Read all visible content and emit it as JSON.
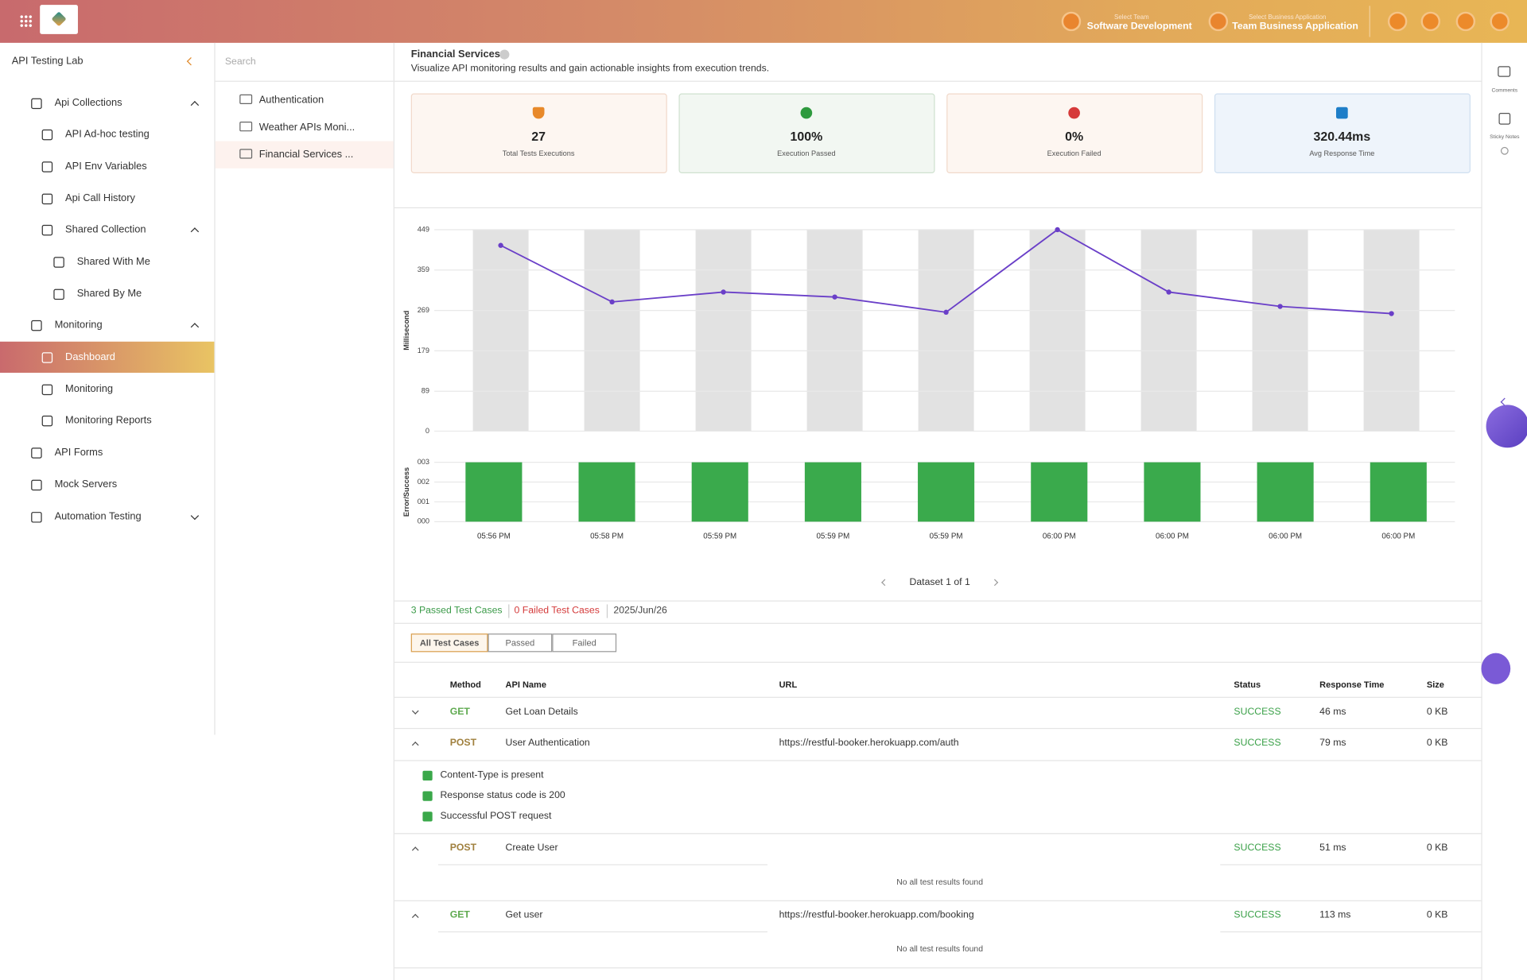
{
  "header": {
    "team_label": "Select Team",
    "team": "Software Development",
    "app_label": "Select Business Application",
    "app": "Team Business Application"
  },
  "sidebar": {
    "title": "API Testing Lab",
    "items": [
      "Api Collections",
      "API Ad-hoc testing",
      "API Env Variables",
      "Api Call History",
      "Shared Collection",
      "Shared With Me",
      "Shared By Me",
      "Monitoring",
      "Dashboard",
      "Monitoring",
      "Monitoring Reports",
      "API Forms",
      "Mock Servers",
      "Automation Testing"
    ]
  },
  "collections": {
    "search": "Search",
    "items": [
      "Authentication",
      "Weather APIs Moni...",
      "Financial Services ..."
    ]
  },
  "page": {
    "title": "Financial Services",
    "subtitle": "Visualize API monitoring results and gain actionable insights from execution trends."
  },
  "stats": [
    {
      "value": "27",
      "label": "Total Tests Executions"
    },
    {
      "value": "100%",
      "label": "Execution Passed"
    },
    {
      "value": "0%",
      "label": "Execution Failed"
    },
    {
      "value": "320.44ms",
      "label": "Avg Response Time"
    }
  ],
  "chart_data": [
    {
      "type": "line",
      "y_label": "Millisecond",
      "values": [
        414,
        288,
        310,
        299,
        265,
        449,
        310,
        278,
        262
      ],
      "color": "#6a3fc8",
      "ylim": [
        0,
        449
      ],
      "yticks": [
        0,
        89,
        179,
        269,
        359,
        449
      ],
      "grid": true
    },
    {
      "type": "bar",
      "y_label": "Error/Success",
      "categories": [
        "05:56 PM",
        "05:58 PM",
        "05:59 PM",
        "05:59 PM",
        "05:59 PM",
        "06:00 PM",
        "06:00 PM",
        "06:00 PM",
        "06:00 PM"
      ],
      "values": [
        3,
        3,
        3,
        3,
        3,
        3,
        3,
        3,
        3
      ],
      "color": "#3aaa4c",
      "ylim": [
        0,
        3
      ],
      "yticks": [
        {
          "value": 0,
          "label": "000"
        },
        {
          "value": 1,
          "label": "001"
        },
        {
          "value": 2,
          "label": "002"
        },
        {
          "value": 3,
          "label": "003"
        }
      ],
      "grid": true
    }
  ],
  "pager": "Dataset 1 of 1",
  "summary": {
    "passed": "3 Passed Test Cases",
    "failed": "0 Failed Test Cases",
    "date": "2025/Jun/26"
  },
  "tabs": [
    "All Test Cases",
    "Passed",
    "Failed"
  ],
  "table": {
    "columns": [
      "Method",
      "API Name",
      "URL",
      "Status",
      "Response Time",
      "Size"
    ],
    "rows": [
      {
        "method": "GET",
        "name": "Get Loan Details",
        "status": "SUCCESS",
        "time": "46 ms",
        "size": "0 KB"
      },
      {
        "method": "POST",
        "name": "User Authentication",
        "url": "https://restful-booker.herokuapp.com/auth",
        "status": "SUCCESS",
        "time": "79 ms",
        "size": "0 KB",
        "tests": [
          "Content-Type is present",
          "Response status code is 200",
          "Successful POST request"
        ]
      },
      {
        "method": "POST",
        "name": "Create User",
        "status": "SUCCESS",
        "time": "51 ms",
        "size": "0 KB",
        "message": "No all test results found"
      },
      {
        "method": "GET",
        "name": "Get user",
        "url": "https://restful-booker.herokuapp.com/booking",
        "status": "SUCCESS",
        "time": "113 ms",
        "size": "0 KB",
        "message": "No all test results found"
      }
    ]
  },
  "rail": [
    "Comments",
    "Sticky Notes"
  ]
}
